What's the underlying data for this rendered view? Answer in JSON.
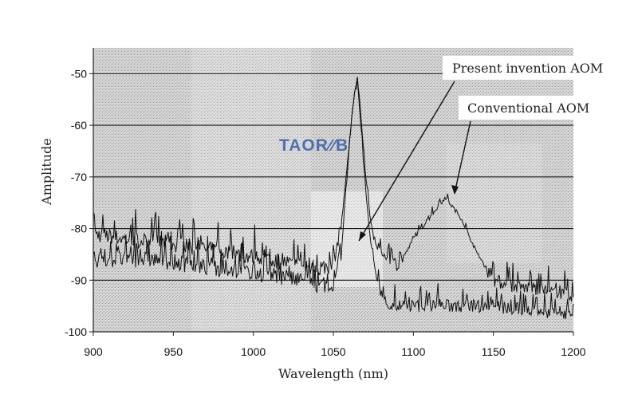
{
  "chart_data": {
    "type": "line",
    "xlabel": "Wavelength (nm)",
    "ylabel": "Amplitude",
    "xlim": [
      900,
      1200
    ],
    "ylim": [
      -100,
      -45
    ],
    "x_ticks": [
      "900",
      "950",
      "1000",
      "1050",
      "1100",
      "1150",
      "1200"
    ],
    "y_ticks": [
      "-50",
      "-60",
      "-70",
      "-80",
      "-90",
      "-100"
    ],
    "grid": "horizontal",
    "annotations": [
      {
        "text": "Present invention AOM",
        "points_to": [
          1065,
          -82
        ]
      },
      {
        "text": "Conventional AOM",
        "points_to": [
          1127,
          -74
        ]
      }
    ],
    "series": [
      {
        "x": [
          900,
          920,
          940,
          960,
          980,
          1000,
          1020,
          1040,
          1050,
          1055,
          1058,
          1061,
          1063,
          1065,
          1067,
          1070,
          1073,
          1076,
          1080,
          1085,
          1090,
          1095,
          1100,
          1110,
          1120,
          1130,
          1140,
          1150,
          1160,
          1180,
          1200
        ],
        "y": [
          -81,
          -82,
          -82.5,
          -83.5,
          -84.5,
          -85.5,
          -86.5,
          -88,
          -87,
          -79,
          -70,
          -60,
          -54,
          -51,
          -57,
          -69,
          -78,
          -83,
          -85,
          -86,
          -87,
          -85,
          -82,
          -78,
          -74,
          -78,
          -85,
          -90,
          -91,
          -92,
          -93
        ]
      },
      {
        "x": [
          900,
          920,
          940,
          960,
          980,
          1000,
          1020,
          1040,
          1050,
          1055,
          1058,
          1061,
          1063,
          1065,
          1067,
          1070,
          1073,
          1076,
          1080,
          1085,
          1090,
          1100,
          1120,
          1140,
          1150,
          1160,
          1180,
          1200
        ],
        "y": [
          -86,
          -86,
          -86,
          -87,
          -88,
          -88.5,
          -89.5,
          -91,
          -92,
          -85,
          -72,
          -60,
          -54,
          -52,
          -59,
          -72,
          -82,
          -88,
          -93,
          -95,
          -95,
          -95,
          -95,
          -95,
          -95,
          -95.5,
          -96,
          -96.5
        ]
      }
    ],
    "watermark": "TAOR∕∕B"
  }
}
